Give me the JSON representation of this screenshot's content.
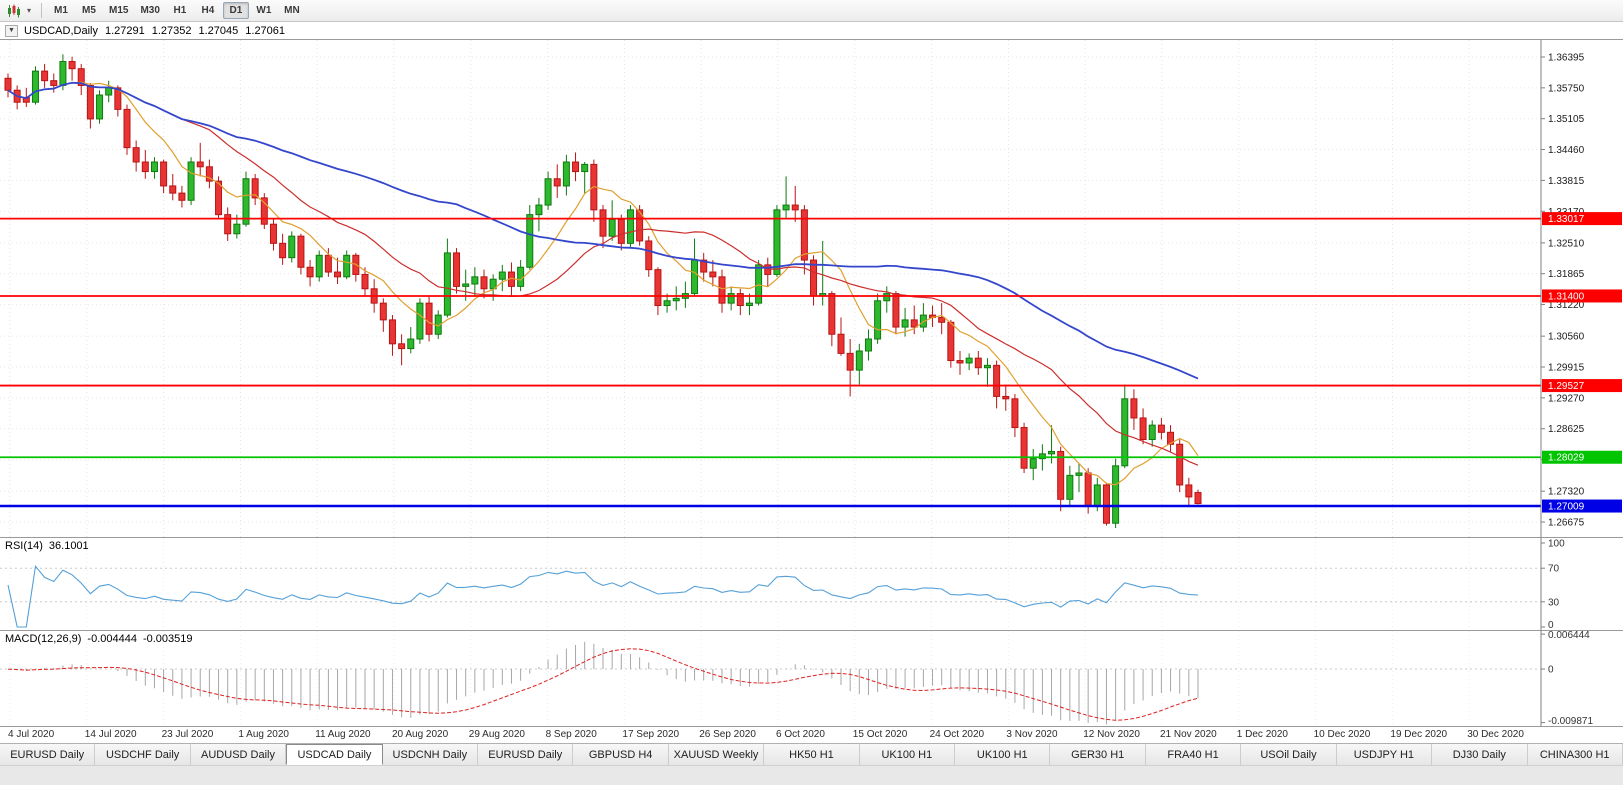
{
  "toolbar": {
    "dropdown_icon": "▾",
    "timeframes": [
      "M1",
      "M5",
      "M15",
      "M30",
      "H1",
      "H4",
      "D1",
      "W1",
      "MN"
    ],
    "active_timeframe": "D1"
  },
  "chart_header": {
    "collapse_icon": "▼",
    "symbol": "USDCAD,Daily",
    "open": "1.27291",
    "high": "1.27352",
    "low": "1.27045",
    "close": "1.27061"
  },
  "rsi_panel": {
    "name": "RSI(14)",
    "value": "36.1001",
    "axis_labels": [
      "100",
      "70",
      "30",
      "0"
    ],
    "levels": [
      70,
      30
    ]
  },
  "macd_panel": {
    "name": "MACD(12,26,9)",
    "macd_value": "-0.004444",
    "signal_value": "-0.003519",
    "axis_labels": [
      "0.006444",
      "0",
      "-0.009871"
    ]
  },
  "date_axis": [
    "4 Jul 2020",
    "14 Jul 2020",
    "23 Jul 2020",
    "1 Aug 2020",
    "11 Aug 2020",
    "20 Aug 2020",
    "29 Aug 2020",
    "8 Sep 2020",
    "17 Sep 2020",
    "26 Sep 2020",
    "6 Oct 2020",
    "15 Oct 2020",
    "24 Oct 2020",
    "3 Nov 2020",
    "12 Nov 2020",
    "21 Nov 2020",
    "1 Dec 2020",
    "10 Dec 2020",
    "19 Dec 2020",
    "30 Dec 2020"
  ],
  "bottom_tabs": {
    "active_index": 3,
    "items": [
      "EURUSD Daily",
      "USDCHF Daily",
      "AUDUSD Daily",
      "USDCAD Daily",
      "USDCNH Daily",
      "EURUSD Daily",
      "GBPUSD H4",
      "XAUUSD Weekly",
      "HK50 H1",
      "UK100 H1",
      "UK100 H1",
      "GER30 H1",
      "FRA40 H1",
      "USOil Daily",
      "USDJPY H1",
      "DJ30 Daily",
      "CHINA300 H1"
    ],
    "active_label": "USDCAD Daily"
  },
  "chart_data": {
    "type": "candlestick",
    "symbol": "USDCAD",
    "timeframe": "Daily",
    "y_axis_labels": [
      "1.36395",
      "1.35750",
      "1.35105",
      "1.34460",
      "1.33815",
      "1.33170",
      "1.32510",
      "1.31865",
      "1.31220",
      "1.30560",
      "1.29915",
      "1.29270",
      "1.28625",
      "1.27980",
      "1.27320",
      "1.26675"
    ],
    "price_range": {
      "top": 1.3675,
      "bottom": 1.26362
    },
    "up_color": "#2eb82e",
    "up_stroke": "#0f7a0f",
    "down_color": "#e93434",
    "down_stroke": "#b81414",
    "horizontal_lines": [
      {
        "price": 1.33017,
        "label": "1.33017",
        "color": "#fe0000",
        "width": 1.8
      },
      {
        "price": 1.314,
        "label": "1.31400",
        "color": "#fe0000",
        "width": 1.8
      },
      {
        "price": 1.29527,
        "label": "1.29527",
        "color": "#fe0000",
        "width": 1.8
      },
      {
        "price": 1.28029,
        "label": "1.28029",
        "color": "#00c400",
        "width": 1.8
      },
      {
        "price": 1.27009,
        "label": "1.27009",
        "color": "#0000e6",
        "width": 2.5
      }
    ],
    "moving_averages": [
      {
        "period": 8,
        "color": "#e0a030",
        "width": 1.2
      },
      {
        "period": 20,
        "color": "#cc2e2e",
        "width": 1.2
      },
      {
        "period": 50,
        "color": "#3346cc",
        "width": 1.8
      }
    ],
    "rsi": {
      "period": 14,
      "color": "#55a0d8"
    },
    "macd": {
      "fast": 12,
      "slow": 26,
      "signal_period": 9,
      "range": [
        0.0072,
        -0.0105
      ],
      "hist_color": "#a6a6a6",
      "signal_color": "#e02020"
    },
    "candles": [
      [
        1.3595,
        1.3605,
        1.3555,
        1.357
      ],
      [
        1.357,
        1.358,
        1.353,
        1.3545
      ],
      [
        1.3555,
        1.3575,
        1.3535,
        1.3545
      ],
      [
        1.3545,
        1.362,
        1.354,
        1.361
      ],
      [
        1.361,
        1.3625,
        1.3575,
        1.359
      ],
      [
        1.359,
        1.3605,
        1.3565,
        1.358
      ],
      [
        1.358,
        1.3645,
        1.357,
        1.363
      ],
      [
        1.363,
        1.364,
        1.359,
        1.3615
      ],
      [
        1.3615,
        1.3625,
        1.356,
        1.358
      ],
      [
        1.358,
        1.3585,
        1.349,
        1.351
      ],
      [
        1.351,
        1.357,
        1.35,
        1.356
      ],
      [
        1.356,
        1.359,
        1.3545,
        1.3575
      ],
      [
        1.3575,
        1.358,
        1.3515,
        1.353
      ],
      [
        1.353,
        1.354,
        1.3435,
        1.345
      ],
      [
        1.345,
        1.3465,
        1.34,
        1.342
      ],
      [
        1.342,
        1.3445,
        1.3385,
        1.34
      ],
      [
        1.34,
        1.343,
        1.3385,
        1.342
      ],
      [
        1.342,
        1.3425,
        1.3355,
        1.337
      ],
      [
        1.337,
        1.3395,
        1.334,
        1.3355
      ],
      [
        1.3355,
        1.337,
        1.3325,
        1.334
      ],
      [
        1.334,
        1.343,
        1.333,
        1.342
      ],
      [
        1.342,
        1.346,
        1.339,
        1.341
      ],
      [
        1.341,
        1.3425,
        1.3365,
        1.338
      ],
      [
        1.338,
        1.339,
        1.33,
        1.331
      ],
      [
        1.331,
        1.3325,
        1.3255,
        1.327
      ],
      [
        1.327,
        1.331,
        1.326,
        1.329
      ],
      [
        1.329,
        1.34,
        1.3285,
        1.3385
      ],
      [
        1.3385,
        1.3395,
        1.333,
        1.3345
      ],
      [
        1.3345,
        1.3355,
        1.328,
        1.329
      ],
      [
        1.329,
        1.33,
        1.3235,
        1.325
      ],
      [
        1.325,
        1.327,
        1.3205,
        1.322
      ],
      [
        1.322,
        1.3275,
        1.321,
        1.3265
      ],
      [
        1.3265,
        1.327,
        1.3185,
        1.32
      ],
      [
        1.32,
        1.3215,
        1.316,
        1.318
      ],
      [
        1.318,
        1.3235,
        1.317,
        1.3225
      ],
      [
        1.3225,
        1.324,
        1.318,
        1.319
      ],
      [
        1.319,
        1.322,
        1.3165,
        1.318
      ],
      [
        1.318,
        1.3235,
        1.3175,
        1.3225
      ],
      [
        1.3225,
        1.323,
        1.317,
        1.3185
      ],
      [
        1.3185,
        1.32,
        1.314,
        1.3155
      ],
      [
        1.3155,
        1.3175,
        1.3105,
        1.3125
      ],
      [
        1.3125,
        1.3135,
        1.3065,
        1.309
      ],
      [
        1.309,
        1.31,
        1.3015,
        1.304
      ],
      [
        1.304,
        1.306,
        1.2995,
        1.303
      ],
      [
        1.303,
        1.3075,
        1.302,
        1.305
      ],
      [
        1.305,
        1.3135,
        1.304,
        1.3125
      ],
      [
        1.3125,
        1.314,
        1.3045,
        1.306
      ],
      [
        1.306,
        1.311,
        1.305,
        1.31
      ],
      [
        1.31,
        1.326,
        1.3095,
        1.323
      ],
      [
        1.323,
        1.324,
        1.3145,
        1.316
      ],
      [
        1.316,
        1.3195,
        1.313,
        1.3165
      ],
      [
        1.3165,
        1.32,
        1.314,
        1.318
      ],
      [
        1.318,
        1.3195,
        1.3135,
        1.3155
      ],
      [
        1.3155,
        1.3185,
        1.313,
        1.3175
      ],
      [
        1.3175,
        1.3205,
        1.315,
        1.319
      ],
      [
        1.319,
        1.321,
        1.314,
        1.316
      ],
      [
        1.316,
        1.3215,
        1.315,
        1.32
      ],
      [
        1.32,
        1.333,
        1.3195,
        1.331
      ],
      [
        1.331,
        1.3345,
        1.3275,
        1.333
      ],
      [
        1.333,
        1.34,
        1.332,
        1.3385
      ],
      [
        1.3385,
        1.3415,
        1.3345,
        1.337
      ],
      [
        1.337,
        1.3435,
        1.335,
        1.342
      ],
      [
        1.342,
        1.344,
        1.338,
        1.34
      ],
      [
        1.34,
        1.342,
        1.3355,
        1.3415
      ],
      [
        1.3415,
        1.3425,
        1.3295,
        1.332
      ],
      [
        1.332,
        1.333,
        1.324,
        1.3265
      ],
      [
        1.3265,
        1.334,
        1.3255,
        1.33
      ],
      [
        1.33,
        1.331,
        1.3235,
        1.325
      ],
      [
        1.325,
        1.333,
        1.324,
        1.332
      ],
      [
        1.332,
        1.333,
        1.3245,
        1.3255
      ],
      [
        1.3255,
        1.3265,
        1.318,
        1.3195
      ],
      [
        1.3195,
        1.32,
        1.31,
        1.312
      ],
      [
        1.312,
        1.3145,
        1.3105,
        1.313
      ],
      [
        1.313,
        1.316,
        1.311,
        1.3135
      ],
      [
        1.3135,
        1.317,
        1.3115,
        1.3145
      ],
      [
        1.3145,
        1.326,
        1.314,
        1.3215
      ],
      [
        1.3215,
        1.323,
        1.317,
        1.319
      ],
      [
        1.319,
        1.3215,
        1.316,
        1.318
      ],
      [
        1.318,
        1.3195,
        1.3105,
        1.3125
      ],
      [
        1.3125,
        1.316,
        1.311,
        1.3145
      ],
      [
        1.3145,
        1.3155,
        1.31,
        1.312
      ],
      [
        1.312,
        1.3145,
        1.31,
        1.3125
      ],
      [
        1.3125,
        1.3215,
        1.312,
        1.3205
      ],
      [
        1.3205,
        1.322,
        1.316,
        1.3185
      ],
      [
        1.3185,
        1.333,
        1.318,
        1.332
      ],
      [
        1.332,
        1.339,
        1.33,
        1.333
      ],
      [
        1.333,
        1.337,
        1.3295,
        1.332
      ],
      [
        1.332,
        1.333,
        1.3185,
        1.3215
      ],
      [
        1.3215,
        1.3225,
        1.312,
        1.314
      ],
      [
        1.314,
        1.3255,
        1.312,
        1.3145
      ],
      [
        1.3145,
        1.315,
        1.3035,
        1.306
      ],
      [
        1.306,
        1.3095,
        1.3015,
        1.302
      ],
      [
        1.302,
        1.305,
        1.293,
        1.2985
      ],
      [
        1.2985,
        1.304,
        1.2955,
        1.3025
      ],
      [
        1.3025,
        1.307,
        1.3005,
        1.305
      ],
      [
        1.305,
        1.3145,
        1.304,
        1.313
      ],
      [
        1.313,
        1.316,
        1.3105,
        1.3145
      ],
      [
        1.3145,
        1.315,
        1.306,
        1.3075
      ],
      [
        1.3075,
        1.3115,
        1.3055,
        1.309
      ],
      [
        1.309,
        1.312,
        1.306,
        1.3075
      ],
      [
        1.3075,
        1.3125,
        1.3065,
        1.31
      ],
      [
        1.31,
        1.312,
        1.3075,
        1.3095
      ],
      [
        1.3095,
        1.3125,
        1.306,
        1.3085
      ],
      [
        1.3085,
        1.309,
        1.299,
        1.3005
      ],
      [
        1.3005,
        1.3025,
        1.2975,
        1.3
      ],
      [
        1.3,
        1.302,
        1.2985,
        1.301
      ],
      [
        1.301,
        1.3025,
        1.2975,
        1.299
      ],
      [
        1.299,
        1.301,
        1.295,
        1.2995
      ],
      [
        1.2995,
        1.3005,
        1.2905,
        1.293
      ],
      [
        1.293,
        1.2955,
        1.29,
        1.2925
      ],
      [
        1.2925,
        1.2935,
        1.2845,
        1.2865
      ],
      [
        1.2865,
        1.2875,
        1.277,
        1.278
      ],
      [
        1.278,
        1.282,
        1.2755,
        1.28
      ],
      [
        1.28,
        1.283,
        1.2775,
        1.281
      ],
      [
        1.281,
        1.287,
        1.279,
        1.2815
      ],
      [
        1.2815,
        1.2825,
        1.269,
        1.2715
      ],
      [
        1.2715,
        1.2785,
        1.27,
        1.2765
      ],
      [
        1.2765,
        1.279,
        1.273,
        1.277
      ],
      [
        1.277,
        1.278,
        1.2685,
        1.27
      ],
      [
        1.27,
        1.276,
        1.269,
        1.2745
      ],
      [
        1.2745,
        1.275,
        1.266,
        1.2665
      ],
      [
        1.2665,
        1.28,
        1.2655,
        1.2785
      ],
      [
        1.2785,
        1.2955,
        1.278,
        1.2925
      ],
      [
        1.2925,
        1.2945,
        1.286,
        1.2885
      ],
      [
        1.2885,
        1.2905,
        1.283,
        1.284
      ],
      [
        1.284,
        1.288,
        1.2825,
        1.287
      ],
      [
        1.287,
        1.2885,
        1.284,
        1.2855
      ],
      [
        1.2855,
        1.287,
        1.2815,
        1.283
      ],
      [
        1.283,
        1.284,
        1.273,
        1.2745
      ],
      [
        1.2745,
        1.276,
        1.27,
        1.272
      ],
      [
        1.27291,
        1.27352,
        1.27045,
        1.27061
      ]
    ]
  }
}
